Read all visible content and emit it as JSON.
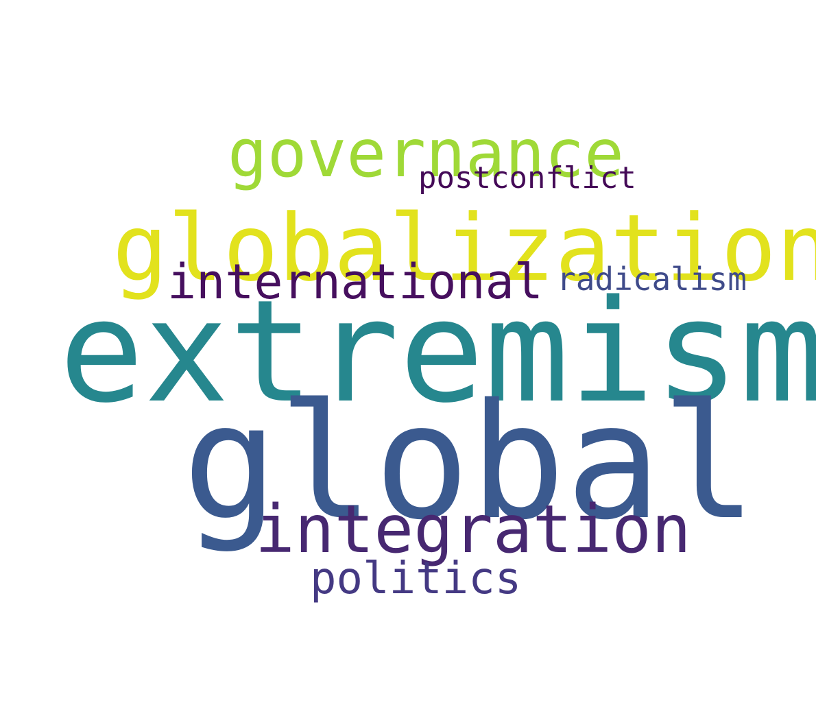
{
  "words": {
    "extremism": {
      "text": "extremism",
      "color": "#26878e"
    },
    "global": {
      "text": "global",
      "color": "#3b5a8f"
    },
    "globalization": {
      "text": "globalization",
      "color": "#e2e21d"
    },
    "governance": {
      "text": "governance",
      "color": "#9fd937"
    },
    "integration": {
      "text": "integration",
      "color": "#472871"
    },
    "international": {
      "text": "international",
      "color": "#460f5e"
    },
    "politics": {
      "text": "politics",
      "color": "#443983"
    },
    "radicalism": {
      "text": "radicalism",
      "color": "#3f4b8a"
    },
    "postconflict": {
      "text": "postconflict",
      "color": "#440a57"
    }
  }
}
